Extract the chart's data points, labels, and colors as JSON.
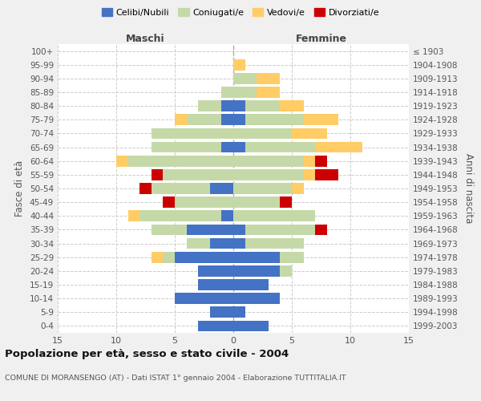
{
  "age_groups": [
    "0-4",
    "5-9",
    "10-14",
    "15-19",
    "20-24",
    "25-29",
    "30-34",
    "35-39",
    "40-44",
    "45-49",
    "50-54",
    "55-59",
    "60-64",
    "65-69",
    "70-74",
    "75-79",
    "80-84",
    "85-89",
    "90-94",
    "95-99",
    "100+"
  ],
  "birth_years": [
    "1999-2003",
    "1994-1998",
    "1989-1993",
    "1984-1988",
    "1979-1983",
    "1974-1978",
    "1969-1973",
    "1964-1968",
    "1959-1963",
    "1954-1958",
    "1949-1953",
    "1944-1948",
    "1939-1943",
    "1934-1938",
    "1929-1933",
    "1924-1928",
    "1919-1923",
    "1914-1918",
    "1909-1913",
    "1904-1908",
    "≤ 1903"
  ],
  "maschi": {
    "celibi": [
      3,
      2,
      5,
      3,
      3,
      5,
      2,
      4,
      1,
      0,
      2,
      0,
      0,
      1,
      0,
      1,
      1,
      0,
      0,
      0,
      0
    ],
    "coniugati": [
      0,
      0,
      0,
      0,
      0,
      1,
      2,
      3,
      7,
      5,
      5,
      6,
      9,
      6,
      7,
      3,
      2,
      1,
      0,
      0,
      0
    ],
    "vedovi": [
      0,
      0,
      0,
      0,
      0,
      1,
      0,
      0,
      1,
      0,
      0,
      0,
      1,
      0,
      0,
      1,
      0,
      0,
      0,
      0,
      0
    ],
    "divorziati": [
      0,
      0,
      0,
      0,
      0,
      0,
      0,
      0,
      0,
      1,
      1,
      1,
      0,
      0,
      0,
      0,
      0,
      0,
      0,
      0,
      0
    ]
  },
  "femmine": {
    "nubili": [
      3,
      1,
      4,
      3,
      4,
      4,
      1,
      1,
      0,
      0,
      0,
      0,
      0,
      1,
      0,
      1,
      1,
      0,
      0,
      0,
      0
    ],
    "coniugate": [
      0,
      0,
      0,
      0,
      1,
      2,
      5,
      6,
      7,
      4,
      5,
      6,
      6,
      6,
      5,
      5,
      3,
      2,
      2,
      0,
      0
    ],
    "vedove": [
      0,
      0,
      0,
      0,
      0,
      0,
      0,
      0,
      0,
      0,
      1,
      1,
      1,
      4,
      3,
      3,
      2,
      2,
      2,
      1,
      0
    ],
    "divorziate": [
      0,
      0,
      0,
      0,
      0,
      0,
      0,
      1,
      0,
      1,
      0,
      2,
      1,
      0,
      0,
      0,
      0,
      0,
      0,
      0,
      0
    ]
  },
  "colors": {
    "celibi": "#4472C4",
    "coniugati": "#C5D9A8",
    "vedovi": "#FFCC66",
    "divorziati": "#CC0000"
  },
  "xlim": 15,
  "title": "Popolazione per età, sesso e stato civile - 2004",
  "subtitle": "COMUNE DI MORANSENGO (AT) - Dati ISTAT 1° gennaio 2004 - Elaborazione TUTTITALIA.IT",
  "ylabel_left": "Fasce di età",
  "ylabel_right": "Anni di nascita",
  "legend_labels": [
    "Celibi/Nubili",
    "Coniugati/e",
    "Vedovi/e",
    "Divorziati/e"
  ],
  "maschi_label": "Maschi",
  "femmine_label": "Femmine",
  "bg_color": "#f0f0f0",
  "plot_bg_color": "#ffffff"
}
